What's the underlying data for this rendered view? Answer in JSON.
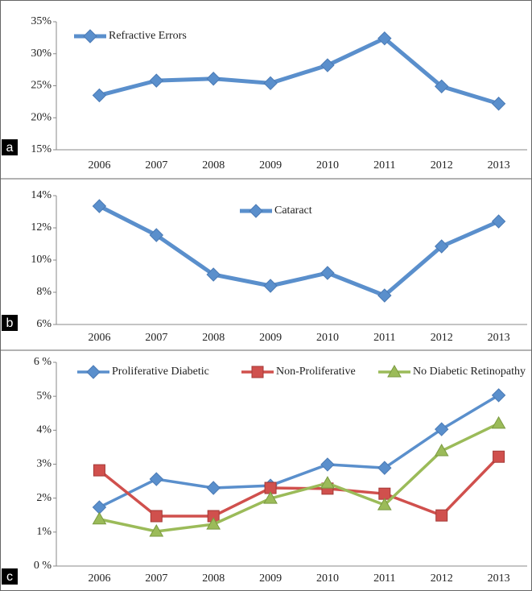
{
  "chart_data": [
    {
      "type": "line",
      "label": "a",
      "categories": [
        "2006",
        "2007",
        "2008",
        "2009",
        "2010",
        "2011",
        "2012",
        "2013"
      ],
      "series": [
        {
          "name": "Refractive Errors",
          "color": "#5a8fcc",
          "marker": "diamond",
          "values": [
            23.5,
            25.8,
            26.1,
            25.4,
            28.2,
            32.4,
            24.9,
            22.2
          ]
        }
      ],
      "ylim": [
        15,
        35
      ],
      "yticks": [
        {
          "value": 15,
          "label": "15%"
        },
        {
          "value": 20,
          "label": "20%"
        },
        {
          "value": 25,
          "label": "25%"
        },
        {
          "value": 30,
          "label": "30%"
        },
        {
          "value": 35,
          "label": "35%"
        }
      ]
    },
    {
      "type": "line",
      "label": "b",
      "categories": [
        "2006",
        "2007",
        "2008",
        "2009",
        "2010",
        "2011",
        "2012",
        "2013"
      ],
      "series": [
        {
          "name": "Cataract",
          "color": "#5a8fcc",
          "marker": "diamond",
          "values": [
            13.35,
            11.55,
            9.1,
            8.4,
            9.2,
            7.8,
            10.85,
            12.4
          ]
        }
      ],
      "ylim": [
        6,
        14
      ],
      "yticks": [
        {
          "value": 6,
          "label": "6%"
        },
        {
          "value": 8,
          "label": "8%"
        },
        {
          "value": 10,
          "label": "10%"
        },
        {
          "value": 12,
          "label": "12%"
        },
        {
          "value": 14,
          "label": "14%"
        }
      ]
    },
    {
      "type": "line",
      "label": "c",
      "categories": [
        "2006",
        "2007",
        "2008",
        "2009",
        "2010",
        "2011",
        "2012",
        "2013"
      ],
      "series": [
        {
          "name": "Proliferative Diabetic",
          "color": "#5a8fcc",
          "marker": "diamond",
          "values": [
            1.73,
            2.56,
            2.3,
            2.37,
            2.99,
            2.89,
            4.03,
            5.03
          ]
        },
        {
          "name": "Non-Proliferative",
          "color": "#d0504d",
          "marker": "square",
          "values": [
            2.82,
            1.47,
            1.47,
            2.3,
            2.28,
            2.13,
            1.49,
            3.22
          ]
        },
        {
          "name": "No Diabetic Retinopathy",
          "color": "#9bbb59",
          "marker": "triangle",
          "values": [
            1.38,
            1.02,
            1.23,
            1.99,
            2.44,
            1.8,
            3.39,
            4.2
          ]
        }
      ],
      "ylim": [
        0,
        6
      ],
      "yticks": [
        {
          "value": 0,
          "label": "0 %"
        },
        {
          "value": 1,
          "label": "1%"
        },
        {
          "value": 2,
          "label": "2%"
        },
        {
          "value": 3,
          "label": "3%"
        },
        {
          "value": 4,
          "label": "4%"
        },
        {
          "value": 5,
          "label": "5%"
        },
        {
          "value": 6,
          "label": "6 %"
        }
      ]
    }
  ]
}
